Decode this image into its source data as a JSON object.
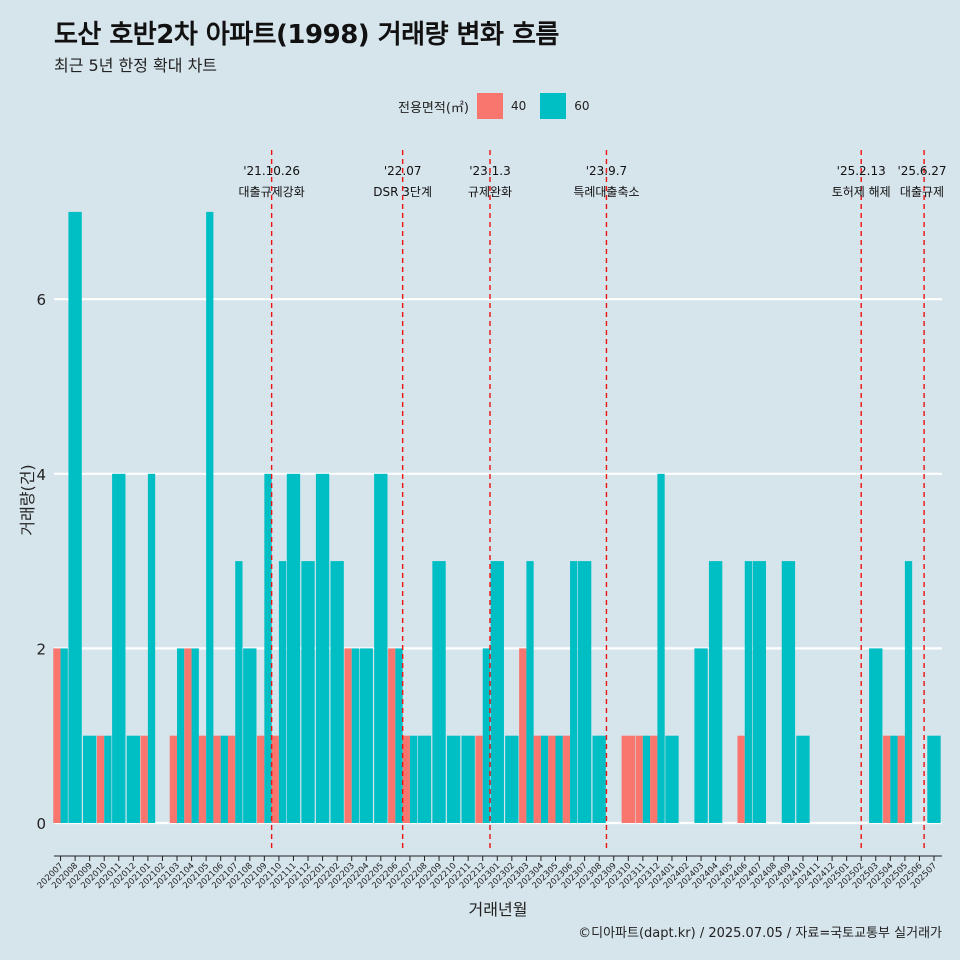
{
  "header": {
    "title": "도산 호반2차 아파트(1998) 거래량 변화 흐름",
    "subtitle": "최근 5년 한정 확대 차트"
  },
  "legend": {
    "title": "전용면적(㎡)",
    "items": [
      {
        "label": "40",
        "color": "#f8766d"
      },
      {
        "label": "60",
        "color": "#00bfc4"
      }
    ]
  },
  "caption": "©디아파트(dapt.kr) / 2025.07.05 / 자료=국토교통부 실거래가",
  "chart_data": {
    "type": "bar",
    "title": "도산 호반2차 아파트(1998) 거래량 변화 흐름",
    "subtitle": "최근 5년 한정 확대 차트",
    "xlabel": "거래년월",
    "ylabel": "거래량(건)",
    "ylim": [
      0,
      7.4
    ],
    "yticks": [
      0,
      2,
      4,
      6
    ],
    "grid": true,
    "legend_position": "top",
    "categories": [
      "202007",
      "202008",
      "202009",
      "202010",
      "202011",
      "202012",
      "202101",
      "202102",
      "202103",
      "202104",
      "202105",
      "202106",
      "202107",
      "202108",
      "202109",
      "202110",
      "202111",
      "202112",
      "202201",
      "202202",
      "202203",
      "202204",
      "202205",
      "202206",
      "202207",
      "202208",
      "202209",
      "202210",
      "202211",
      "202212",
      "202301",
      "202302",
      "202303",
      "202304",
      "202305",
      "202306",
      "202307",
      "202308",
      "202309",
      "202310",
      "202311",
      "202312",
      "202401",
      "202402",
      "202403",
      "202404",
      "202405",
      "202406",
      "202407",
      "202408",
      "202409",
      "202410",
      "202411",
      "202412",
      "202501",
      "202502",
      "202503",
      "202504",
      "202505",
      "202506",
      "202507"
    ],
    "series": [
      {
        "name": "40",
        "color": "#f8766d",
        "values": [
          2,
          0,
          0,
          1,
          0,
          0,
          1,
          0,
          1,
          2,
          1,
          1,
          1,
          0,
          1,
          1,
          0,
          0,
          0,
          0,
          2,
          0,
          0,
          2,
          1,
          0,
          0,
          0,
          0,
          1,
          0,
          0,
          2,
          1,
          1,
          1,
          0,
          0,
          0,
          1,
          1,
          1,
          0,
          0,
          0,
          0,
          0,
          1,
          0,
          0,
          0,
          0,
          0,
          0,
          0,
          0,
          0,
          1,
          1,
          0,
          0
        ]
      },
      {
        "name": "60",
        "color": "#00bfc4",
        "values": [
          2,
          7,
          1,
          1,
          4,
          1,
          4,
          0,
          2,
          2,
          7,
          1,
          3,
          2,
          4,
          3,
          4,
          3,
          4,
          3,
          2,
          2,
          4,
          2,
          1,
          1,
          3,
          1,
          1,
          2,
          3,
          1,
          3,
          1,
          1,
          3,
          3,
          1,
          0,
          0,
          1,
          4,
          1,
          0,
          2,
          3,
          0,
          3,
          3,
          0,
          3,
          1,
          0,
          0,
          0,
          0,
          2,
          1,
          3,
          0,
          1
        ]
      }
    ],
    "annotations": [
      {
        "x": "202110",
        "position": "left",
        "date": "'21.10.26",
        "text": "대출규제강화"
      },
      {
        "x": "202207",
        "position": "left",
        "date": "'22.07",
        "text": "DSR 3단계"
      },
      {
        "x": "202301",
        "position": "left",
        "date": "'23.1.3",
        "text": "규제완화"
      },
      {
        "x": "202309",
        "position": "left",
        "date": "'23.9.7",
        "text": "특례대출축소"
      },
      {
        "x": "202502",
        "position": "mid",
        "date": "'25.2.13",
        "text": "토허제 해제"
      },
      {
        "x": "202506",
        "position": "end",
        "date": "'25.6.27",
        "text": "대출규제"
      }
    ]
  }
}
